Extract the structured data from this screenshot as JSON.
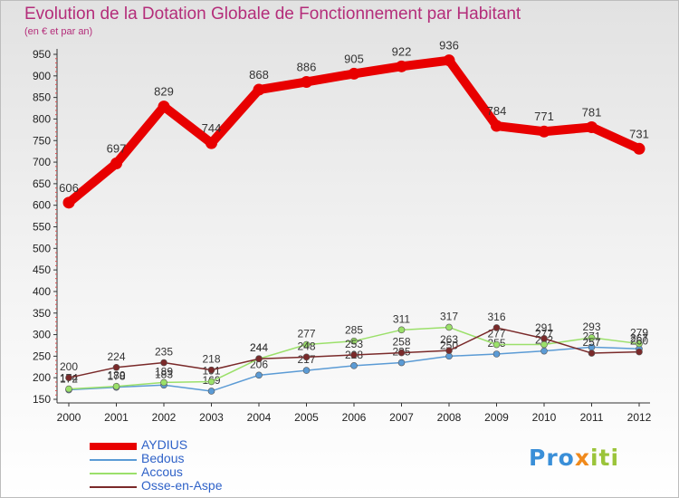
{
  "header": {
    "title": "Evolution de la Dotation Globale de Fonctionnement par Habitant",
    "subtitle": "(en € et par an)"
  },
  "logo": {
    "text_part1": "Pro",
    "text_part2": "x",
    "text_part3": "iti"
  },
  "chart_data": {
    "type": "line",
    "title": "Evolution de la Dotation Globale de Fonctionnement par Habitant",
    "subtitle": "(en € et par an)",
    "xlabel": "",
    "ylabel": "",
    "categories": [
      "2000",
      "2001",
      "2002",
      "2003",
      "2004",
      "2005",
      "2006",
      "2007",
      "2008",
      "2009",
      "2010",
      "2011",
      "2012"
    ],
    "ylim": [
      150,
      950
    ],
    "yticks": [
      150,
      200,
      250,
      300,
      350,
      400,
      450,
      500,
      550,
      600,
      650,
      700,
      750,
      800,
      850,
      900,
      950
    ],
    "grid": false,
    "legend_position": "bottom-left",
    "series": [
      {
        "name": "AYDIUS",
        "color": "#e80000",
        "values": [
          606,
          697,
          829,
          744,
          868,
          886,
          905,
          922,
          936,
          784,
          771,
          781,
          731
        ]
      },
      {
        "name": "Bedous",
        "color": "#5b9bd5",
        "values": [
          172,
          178,
          183,
          169,
          206,
          217,
          228,
          235,
          250,
          255,
          262,
          271,
          267
        ]
      },
      {
        "name": "Accous",
        "color": "#9be06a",
        "values": [
          174,
          180,
          189,
          191,
          244,
          277,
          285,
          311,
          317,
          277,
          277,
          293,
          279
        ]
      },
      {
        "name": "Osse-en-Aspe",
        "color": "#7a2a2a",
        "values": [
          200,
          224,
          235,
          218,
          244,
          248,
          253,
          258,
          263,
          316,
          291,
          257,
          260
        ]
      }
    ]
  }
}
